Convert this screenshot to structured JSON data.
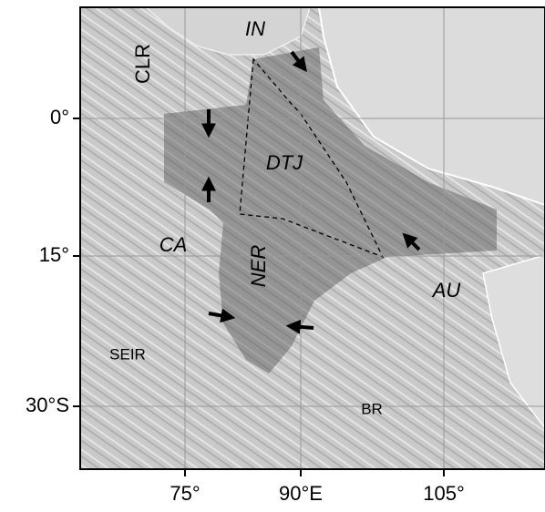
{
  "map": {
    "y_axis_labels": [
      "0°",
      "15°",
      "30°S"
    ],
    "x_axis_labels": [
      "75°",
      "90°E",
      "105°"
    ],
    "region_labels": [
      "IN",
      "CLR",
      "DTJ",
      "CA",
      "NER",
      "AU",
      "SEIR",
      "BR"
    ]
  }
}
